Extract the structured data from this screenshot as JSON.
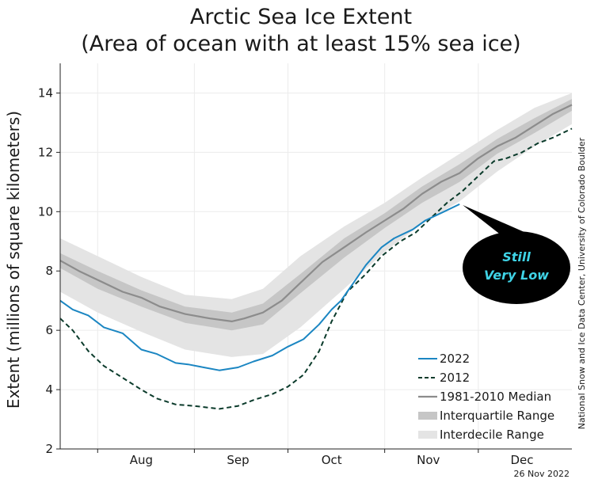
{
  "chart_data": {
    "type": "line",
    "title": "Arctic Sea Ice Extent",
    "subtitle": "(Area of ocean with at least 15% sea ice)",
    "ylabel": "Extent (millions of square kilometers)",
    "xlabel": "",
    "ylim": [
      2,
      15
    ],
    "yticks": [
      2,
      4,
      6,
      8,
      10,
      12,
      14
    ],
    "xlim": [
      "Jul 20",
      "Dec 31"
    ],
    "month_labels": [
      {
        "label": "Aug",
        "date": "Aug 15"
      },
      {
        "label": "Sep",
        "date": "Sep 15"
      },
      {
        "label": "Oct",
        "date": "Oct 15"
      },
      {
        "label": "Nov",
        "date": "Nov 15"
      },
      {
        "label": "Dec",
        "date": "Dec 15"
      }
    ],
    "month_boundaries": [
      "Aug 1",
      "Sep 1",
      "Oct 1",
      "Nov 1",
      "Dec 1"
    ],
    "grid": true,
    "legend_position": "bottom-right",
    "date_stamp": "26 Nov 2022",
    "credit": "National Snow and Ice Data Center, University of Colorado Boulder",
    "annotation": {
      "lines": [
        "Still",
        "Very Low"
      ],
      "points_to": {
        "x": "Nov 25",
        "y": 10.25
      }
    },
    "colors": {
      "s2022": "#1b86c2",
      "s2012": "#0b3b2b",
      "median": "#8c8c8c",
      "interquartile": "#c6c6c6",
      "interdecile": "#e4e4e4",
      "callout_bg": "#000000",
      "callout_text": "#3fd3e6"
    },
    "series": [
      {
        "name": "2022",
        "style": "solid",
        "x": [
          "Jul 20",
          "Jul 24",
          "Jul 29",
          "Aug 3",
          "Aug 9",
          "Aug 15",
          "Aug 20",
          "Aug 26",
          "Aug 30",
          "Sep 4",
          "Sep 9",
          "Sep 15",
          "Sep 20",
          "Sep 26",
          "Oct 1",
          "Oct 6",
          "Oct 11",
          "Oct 15",
          "Oct 18",
          "Oct 22",
          "Oct 26",
          "Oct 31",
          "Nov 4",
          "Nov 10",
          "Nov 14",
          "Nov 20",
          "Nov 25"
        ],
        "values": [
          7.0,
          6.7,
          6.5,
          6.1,
          5.9,
          5.35,
          5.2,
          4.9,
          4.85,
          4.75,
          4.65,
          4.75,
          4.95,
          5.15,
          5.45,
          5.7,
          6.2,
          6.7,
          7.0,
          7.6,
          8.2,
          8.8,
          9.1,
          9.4,
          9.7,
          10.0,
          10.25
        ]
      },
      {
        "name": "2012",
        "style": "dashed",
        "x": [
          "Jul 20",
          "Jul 24",
          "Jul 29",
          "Aug 3",
          "Aug 9",
          "Aug 15",
          "Aug 20",
          "Aug 26",
          "Sep 1",
          "Sep 9",
          "Sep 15",
          "Sep 20",
          "Sep 26",
          "Oct 1",
          "Oct 6",
          "Oct 11",
          "Oct 15",
          "Oct 20",
          "Oct 26",
          "Oct 31",
          "Nov 6",
          "Nov 11",
          "Nov 16",
          "Nov 21",
          "Nov 26",
          "Dec 1",
          "Dec 6",
          "Dec 10",
          "Dec 15",
          "Dec 20",
          "Dec 25",
          "Dec 31"
        ],
        "values": [
          6.4,
          6.0,
          5.3,
          4.8,
          4.4,
          4.0,
          3.7,
          3.5,
          3.45,
          3.35,
          3.45,
          3.65,
          3.85,
          4.1,
          4.5,
          5.3,
          6.3,
          7.3,
          7.9,
          8.5,
          9.0,
          9.3,
          9.8,
          10.3,
          10.7,
          11.2,
          11.7,
          11.8,
          12.0,
          12.3,
          12.5,
          12.8
        ]
      },
      {
        "name": "1981-2010 Median",
        "style": "solid",
        "x": [
          "Jul 20",
          "Jul 26",
          "Aug 1",
          "Aug 9",
          "Aug 15",
          "Aug 21",
          "Aug 29",
          "Sep 6",
          "Sep 13",
          "Sep 17",
          "Sep 23",
          "Sep 29",
          "Oct 5",
          "Oct 12",
          "Oct 19",
          "Oct 26",
          "Nov 1",
          "Nov 7",
          "Nov 13",
          "Nov 19",
          "Nov 25",
          "Dec 1",
          "Dec 7",
          "Dec 13",
          "Dec 19",
          "Dec 25",
          "Dec 31"
        ],
        "values": [
          8.35,
          8.0,
          7.7,
          7.3,
          7.1,
          6.8,
          6.55,
          6.4,
          6.3,
          6.4,
          6.6,
          7.0,
          7.6,
          8.3,
          8.8,
          9.3,
          9.7,
          10.1,
          10.6,
          11.0,
          11.3,
          11.8,
          12.2,
          12.5,
          12.9,
          13.3,
          13.6
        ]
      }
    ],
    "bands": [
      {
        "name": "Interquartile Range",
        "x": [
          "Jul 20",
          "Aug 1",
          "Aug 15",
          "Aug 29",
          "Sep 13",
          "Sep 23",
          "Oct 5",
          "Oct 19",
          "Nov 1",
          "Nov 13",
          "Nov 25",
          "Dec 7",
          "Dec 19",
          "Dec 31"
        ],
        "upper": [
          8.6,
          8.0,
          7.35,
          6.8,
          6.6,
          6.9,
          7.9,
          9.1,
          9.95,
          10.85,
          11.6,
          12.45,
          13.15,
          13.8
        ],
        "lower": [
          8.1,
          7.4,
          6.8,
          6.25,
          6.0,
          6.2,
          7.25,
          8.45,
          9.45,
          10.3,
          11.0,
          11.95,
          12.65,
          13.4
        ]
      },
      {
        "name": "Interdecile Range",
        "x": [
          "Jul 20",
          "Aug 1",
          "Aug 15",
          "Aug 29",
          "Sep 13",
          "Sep 23",
          "Oct 5",
          "Oct 19",
          "Nov 1",
          "Nov 13",
          "Nov 25",
          "Dec 7",
          "Dec 19",
          "Dec 31"
        ],
        "upper": [
          9.1,
          8.5,
          7.8,
          7.2,
          7.05,
          7.4,
          8.5,
          9.5,
          10.3,
          11.15,
          11.95,
          12.75,
          13.5,
          14.0
        ],
        "lower": [
          7.3,
          6.6,
          5.95,
          5.35,
          5.1,
          5.2,
          6.1,
          7.4,
          8.65,
          9.6,
          10.35,
          11.35,
          12.2,
          12.95
        ]
      }
    ]
  }
}
